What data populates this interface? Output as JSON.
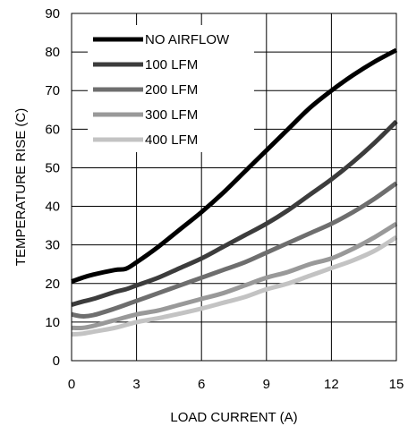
{
  "chart_data": {
    "type": "line",
    "xlabel": "LOAD CURRENT (A)",
    "ylabel": "TEMPERATURE RISE (C)",
    "xlim": [
      0,
      15
    ],
    "ylim": [
      0,
      90
    ],
    "xticks": [
      0,
      3,
      6,
      9,
      12,
      15
    ],
    "yticks": [
      0,
      10,
      20,
      30,
      40,
      50,
      60,
      70,
      80,
      90
    ],
    "grid": true,
    "legend_position": "top-left",
    "series": [
      {
        "name": "NO AIRFLOW",
        "color": "#000000",
        "points": [
          [
            0,
            20.5
          ],
          [
            0.5,
            21.5
          ],
          [
            1,
            22.3
          ],
          [
            2,
            23.5
          ],
          [
            2.5,
            23.8
          ],
          [
            3,
            25.5
          ],
          [
            4,
            29.5
          ],
          [
            5,
            34
          ],
          [
            6,
            38.5
          ],
          [
            7,
            43.5
          ],
          [
            8,
            49
          ],
          [
            9,
            54.5
          ],
          [
            10,
            60
          ],
          [
            11,
            65.5
          ],
          [
            12,
            70
          ],
          [
            13,
            74
          ],
          [
            14,
            77.5
          ],
          [
            15,
            80.5
          ]
        ]
      },
      {
        "name": "100 LFM",
        "color": "#3c3c3c",
        "points": [
          [
            0,
            14.5
          ],
          [
            0.5,
            15.3
          ],
          [
            1,
            16
          ],
          [
            2,
            17.8
          ],
          [
            2.5,
            18.5
          ],
          [
            3,
            19.5
          ],
          [
            4,
            21.5
          ],
          [
            5,
            24
          ],
          [
            6,
            26.5
          ],
          [
            7,
            29.5
          ],
          [
            8,
            32.5
          ],
          [
            9,
            35.5
          ],
          [
            10,
            39
          ],
          [
            11,
            43
          ],
          [
            12,
            47
          ],
          [
            13,
            51.5
          ],
          [
            14,
            56.5
          ],
          [
            15,
            62
          ]
        ]
      },
      {
        "name": "200 LFM",
        "color": "#6e6e6e",
        "points": [
          [
            0,
            12
          ],
          [
            0.5,
            11.5
          ],
          [
            1,
            11.8
          ],
          [
            2,
            13.5
          ],
          [
            3,
            15.5
          ],
          [
            4,
            17.5
          ],
          [
            5,
            19.5
          ],
          [
            6,
            21.5
          ],
          [
            7,
            23.5
          ],
          [
            8,
            25.5
          ],
          [
            9,
            28
          ],
          [
            10,
            30.5
          ],
          [
            11,
            33
          ],
          [
            12,
            35.5
          ],
          [
            13,
            38.5
          ],
          [
            14,
            42
          ],
          [
            15,
            46
          ]
        ]
      },
      {
        "name": "300 LFM",
        "color": "#999999",
        "points": [
          [
            0,
            8.5
          ],
          [
            0.5,
            8.5
          ],
          [
            1,
            9
          ],
          [
            2,
            10.5
          ],
          [
            3,
            12
          ],
          [
            4,
            13
          ],
          [
            5,
            14.5
          ],
          [
            6,
            16
          ],
          [
            7,
            17.5
          ],
          [
            8,
            19.5
          ],
          [
            9,
            21.5
          ],
          [
            10,
            23
          ],
          [
            11,
            25
          ],
          [
            12,
            26.5
          ],
          [
            13,
            29
          ],
          [
            14,
            32
          ],
          [
            15,
            35.5
          ]
        ]
      },
      {
        "name": "400 LFM",
        "color": "#c3c3c3",
        "points": [
          [
            0,
            6.8
          ],
          [
            0.5,
            7
          ],
          [
            1,
            7.5
          ],
          [
            2,
            8.5
          ],
          [
            3,
            10
          ],
          [
            4,
            11
          ],
          [
            5,
            12.2
          ],
          [
            6,
            13.5
          ],
          [
            7,
            15
          ],
          [
            8,
            16.5
          ],
          [
            9,
            18.5
          ],
          [
            10,
            20
          ],
          [
            11,
            22
          ],
          [
            12,
            24
          ],
          [
            13,
            26
          ],
          [
            14,
            28.5
          ],
          [
            15,
            32
          ]
        ]
      }
    ]
  }
}
